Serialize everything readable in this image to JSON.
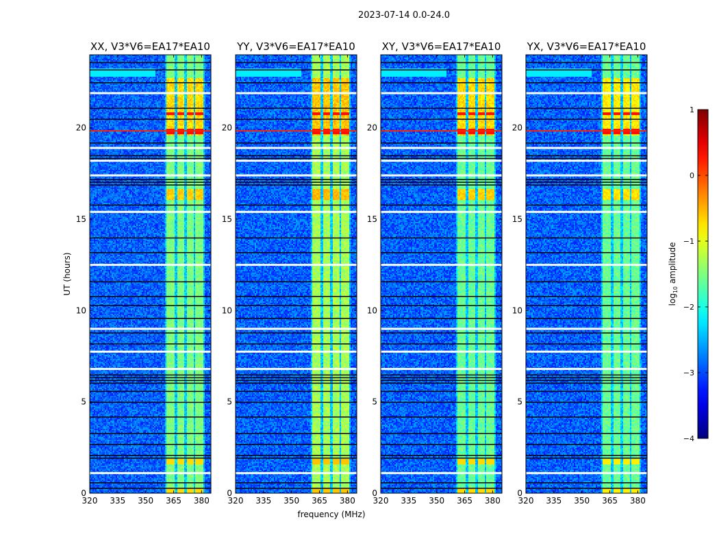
{
  "chart_data": {
    "type": "heatmap",
    "title": "2023-07-14 0.0-24.0",
    "xlabel": "frequency (MHz)",
    "ylabel": "UT (hours)",
    "xlim": [
      320,
      385
    ],
    "ylim": [
      0,
      24
    ],
    "xticks": [
      "320",
      "335",
      "350",
      "365",
      "380"
    ],
    "xtick_values": [
      320,
      335,
      350,
      365,
      380
    ],
    "yticks": [
      "0",
      "5",
      "10",
      "15",
      "20"
    ],
    "ytick_values": [
      0,
      5,
      10,
      15,
      20
    ],
    "panels": [
      {
        "title": "XX, V3*V6=EA17*EA10",
        "bright_level": -1.5,
        "late_level": -0.7
      },
      {
        "title": "YY, V3*V6=EA17*EA10",
        "bright_level": -1.3,
        "late_level": -0.6
      },
      {
        "title": "XY, V3*V6=EA17*EA10",
        "bright_level": -1.6,
        "late_level": -0.7
      },
      {
        "title": "YX, V3*V6=EA17*EA10",
        "bright_level": -1.6,
        "late_level": -0.8
      }
    ],
    "background_level": -2.9,
    "bright_band_mhz": [
      [
        361,
        365.5
      ],
      [
        366.5,
        370.5
      ],
      [
        371.5,
        375.5
      ],
      [
        376.5,
        380.5
      ]
    ],
    "flagged_black_hours": [
      0.3,
      0.6,
      1.95,
      2.1,
      2.7,
      3.3,
      4.2,
      5.0,
      5.6,
      6.05,
      6.2,
      6.35,
      6.5,
      8.2,
      8.8,
      9.6,
      10.3,
      10.8,
      11.6,
      13.2,
      14.0,
      15.8,
      16.9,
      17.05,
      17.2,
      18.35,
      18.5,
      19.2,
      20.5,
      21.1,
      22.5,
      23.2,
      23.6
    ],
    "flagged_white_hours": [
      1.1,
      6.8,
      7.75,
      9.0,
      12.5,
      15.4,
      17.4,
      18.2,
      21.9,
      18.9
    ],
    "colorbar": {
      "label": "log10 amplitude",
      "range": [
        -4,
        1
      ],
      "ticks": [
        "1",
        "0",
        "−1",
        "−2",
        "−3",
        "−4"
      ],
      "tick_values": [
        1,
        0,
        -1,
        -2,
        -3,
        -4
      ],
      "colormap": "jet"
    }
  }
}
